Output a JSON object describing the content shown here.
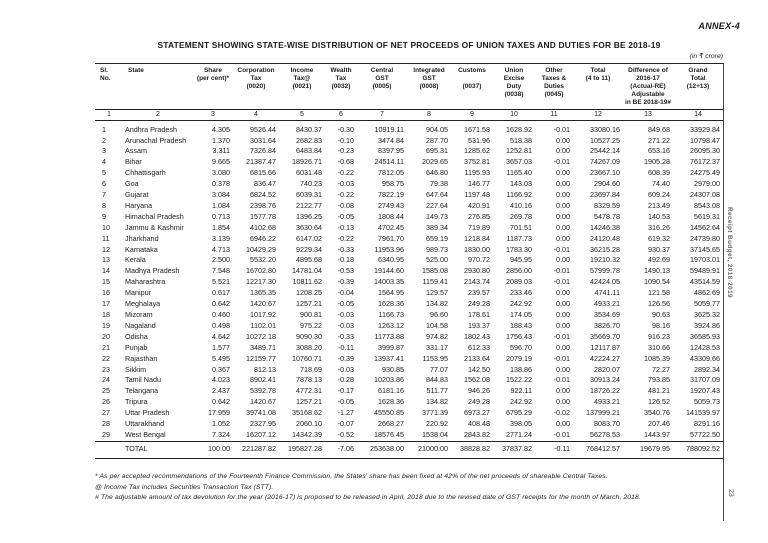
{
  "page": {
    "annex": "ANNEX-4",
    "title": "STATEMENT SHOWING STATE-WISE DISTRIBUTION OF NET PROCEEDS OF UNION TAXES AND DUTIES FOR BE 2018-19",
    "unit_note": "(in ₹ crore)",
    "side_label": "Receipt Budget, 2018-2019",
    "page_number": "23"
  },
  "table": {
    "column_headers": [
      "Sl.\nNo.",
      "State",
      "Share\n(per cent)*",
      "Corporation\nTax\n(0020)",
      "Income\nTax@\n(0021)",
      "Wealth\nTax\n(0032)",
      "Central\nGST\n(0005)",
      "Integrated\nGST\n(0008)",
      "Customs\n\n(0037)",
      "Union\nExcise\nDuty\n(0038)",
      "Other\nTaxes &\nDuties\n(0045)",
      "Total\n(4 to 11)",
      "Difference of\n2016-17\n(Actual-RE)\nAdjustable\nin BE 2018-19#",
      "Grand\nTotal\n(12+13)"
    ],
    "column_numbers": [
      "1",
      "2",
      "3",
      "4",
      "5",
      "6",
      "7",
      "8",
      "9",
      "10",
      "11",
      "12",
      "13",
      "14"
    ],
    "rows": [
      [
        "1",
        "Andhra Pradesh",
        "4.305",
        "9526.44",
        "8430.37",
        "-0.30",
        "10919.11",
        "904.05",
        "1671.58",
        "1628.92",
        "-0.01",
        "33080.16",
        "849.68",
        "33929.84"
      ],
      [
        "2",
        "Arunachal Pradesh",
        "1.370",
        "3031.64",
        "2682.83",
        "-0.10",
        "3474.84",
        "287.70",
        "531.96",
        "518.38",
        "0.00",
        "10527.25",
        "271.22",
        "10798.47"
      ],
      [
        "3",
        "Assam",
        "3.311",
        "7326.84",
        "6483.84",
        "-0.23",
        "8397.95",
        "695.31",
        "1285.62",
        "1252.81",
        "0.00",
        "25442.14",
        "653.16",
        "26095.30"
      ],
      [
        "4",
        "Bihar",
        "9.665",
        "21387.47",
        "18926.71",
        "-0.68",
        "24514.11",
        "2029.65",
        "3752.81",
        "3657.03",
        "-0.01",
        "74267.09",
        "1905.28",
        "76172.37"
      ],
      [
        "5",
        "Chhattisgarh",
        "3.080",
        "6815.66",
        "6031.48",
        "-0.22",
        "7812.05",
        "646.80",
        "1195.93",
        "1165.40",
        "0.00",
        "23667.10",
        "608.39",
        "24275.49"
      ],
      [
        "6",
        "Goa",
        "0.378",
        "836.47",
        "740.23",
        "-0.03",
        "958.75",
        "79.38",
        "146.77",
        "143.03",
        "0.00",
        "2904.60",
        "74.40",
        "2979.00"
      ],
      [
        "7",
        "Gujarat",
        "3.084",
        "6824.52",
        "6039.31",
        "-0.22",
        "7822.19",
        "647.64",
        "1197.48",
        "1166.92",
        "0.00",
        "23697.84",
        "609.24",
        "24307.08"
      ],
      [
        "8",
        "Haryana",
        "1.084",
        "2398.76",
        "2122.77",
        "-0.08",
        "2749.43",
        "227.64",
        "420.91",
        "410.16",
        "0.00",
        "8329.59",
        "213.49",
        "8543.08"
      ],
      [
        "9",
        "Himachal Pradesh",
        "0.713",
        "1577.78",
        "1396.25",
        "-0.05",
        "1808.44",
        "149.73",
        "276.85",
        "269.78",
        "0.00",
        "5478.78",
        "140.53",
        "5619.31"
      ],
      [
        "10",
        "Jammu & Kashmir",
        "1.854",
        "4102.68",
        "3630.64",
        "-0.13",
        "4702.45",
        "389.34",
        "719.89",
        "701.51",
        "0.00",
        "14246.38",
        "316.26",
        "14562.64"
      ],
      [
        "11",
        "Jharkhand",
        "3.139",
        "6946.22",
        "6147.02",
        "-0.22",
        "7961.70",
        "659.19",
        "1218.84",
        "1187.73",
        "0.00",
        "24120.48",
        "619.32",
        "24739.80"
      ],
      [
        "12",
        "Karnataka",
        "4.713",
        "10429.29",
        "9229.34",
        "-0.33",
        "11953.96",
        "989.73",
        "1830.00",
        "1783.30",
        "-0.01",
        "36215.28",
        "930.37",
        "37145.65"
      ],
      [
        "13",
        "Kerala",
        "2.500",
        "5532.20",
        "4895.68",
        "-0.18",
        "6340.95",
        "525.00",
        "970.72",
        "945.95",
        "0.00",
        "19210.32",
        "492.69",
        "19703.01"
      ],
      [
        "14",
        "Madhya Pradesh",
        "7.548",
        "16702.80",
        "14781.04",
        "-0.53",
        "19144.60",
        "1585.08",
        "2930.80",
        "2856.00",
        "-0.01",
        "57999.78",
        "1490.13",
        "59489.91"
      ],
      [
        "15",
        "Maharashtra",
        "5.521",
        "12217.30",
        "10811.62",
        "-0.39",
        "14003.35",
        "1159.41",
        "2143.74",
        "2089.03",
        "-0.01",
        "42424.05",
        "1090.54",
        "43514.59"
      ],
      [
        "16",
        "Manipur",
        "0.617",
        "1365.35",
        "1208.25",
        "-0.04",
        "1564.95",
        "129.57",
        "239.57",
        "233.46",
        "0.00",
        "4741.11",
        "121.58",
        "4862.69"
      ],
      [
        "17",
        "Meghalaya",
        "0.642",
        "1420.67",
        "1257.21",
        "-0.05",
        "1628.36",
        "134.82",
        "249.28",
        "242.92",
        "0.00",
        "4933.21",
        "126.56",
        "5059.77"
      ],
      [
        "18",
        "Mizoram",
        "0.460",
        "1017.92",
        "900.81",
        "-0.03",
        "1166.73",
        "96.60",
        "178.61",
        "174.05",
        "0.00",
        "3534.69",
        "90.63",
        "3625.32"
      ],
      [
        "19",
        "Nagaland",
        "0.498",
        "1102.01",
        "975.22",
        "-0.03",
        "1263.12",
        "104.58",
        "193.37",
        "188.43",
        "0.00",
        "3826.70",
        "98.16",
        "3924.86"
      ],
      [
        "20",
        "Odisha",
        "4.642",
        "10272.18",
        "9090.30",
        "-0.33",
        "11773.88",
        "974.82",
        "1802.43",
        "1756.43",
        "-0.01",
        "35669.70",
        "916.23",
        "36585.93"
      ],
      [
        "21",
        "Punjab",
        "1.577",
        "3489.71",
        "3088.20",
        "-0.11",
        "3999.87",
        "331.17",
        "612.33",
        "596.70",
        "0.00",
        "12117.87",
        "310.66",
        "12428.53"
      ],
      [
        "22",
        "Rajasthan",
        "5.495",
        "12159.77",
        "10760.71",
        "-0.39",
        "13937.41",
        "1153.95",
        "2133.64",
        "2079.19",
        "-0.01",
        "42224.27",
        "1085.39",
        "43309.66"
      ],
      [
        "23",
        "Sikkim",
        "0.367",
        "812.13",
        "718.69",
        "-0.03",
        "930.85",
        "77.07",
        "142.50",
        "138.86",
        "0.00",
        "2820.07",
        "72.27",
        "2892.34"
      ],
      [
        "24",
        "Tamil Nadu",
        "4.023",
        "8902.41",
        "7878.13",
        "-0.28",
        "10203.86",
        "844.83",
        "1562.08",
        "1522.22",
        "-0.01",
        "30913.24",
        "793.85",
        "31707.09"
      ],
      [
        "25",
        "Telangana",
        "2.437",
        "5392.78",
        "4772.31",
        "-0.17",
        "6181.16",
        "511.77",
        "946.26",
        "922.11",
        "0.00",
        "18726.22",
        "481.21",
        "19207.43"
      ],
      [
        "26",
        "Tripura",
        "0.642",
        "1420.67",
        "1257.21",
        "-0.05",
        "1628.36",
        "134.82",
        "249.28",
        "242.92",
        "0.00",
        "4933.21",
        "126.52",
        "5059.73"
      ],
      [
        "27",
        "Uttar Pradesh",
        "17.959",
        "39741.08",
        "35168.62",
        "-1.27",
        "45550.85",
        "3771.39",
        "6973.27",
        "6795.29",
        "-0.02",
        "137999.21",
        "3540.76",
        "141539.97"
      ],
      [
        "28",
        "Uttarakhand",
        "1.052",
        "2327.95",
        "2060.10",
        "-0.07",
        "2668.27",
        "220.92",
        "408.48",
        "398.05",
        "0.00",
        "8083.70",
        "207.46",
        "8291.16"
      ],
      [
        "29",
        "West Bengal",
        "7.324",
        "16207.12",
        "14342.39",
        "-0.52",
        "18576.45",
        "1538.04",
        "2843.82",
        "2771.24",
        "-0.01",
        "56278.53",
        "1443.97",
        "57722.50"
      ]
    ],
    "total_row": [
      "",
      "TOTAL",
      "100.00",
      "221287.82",
      "195827.28",
      "-7.06",
      "253638.00",
      "21000.00",
      "38828.82",
      "37837.82",
      "-0.11",
      "768412.57",
      "19679.95",
      "788092.52"
    ]
  },
  "footnotes": [
    "*  As per accepted recommendations of the Fourteenth Finance Commission, the States' share has been fixed at 42% of the net proceeds of shareable Central Taxes.",
    "@ Income Tax includes Securities Transaction Tax (STT).",
    "#  The adjustable amount of tax devolution for the year (2016-17) is proposed to be released in April, 2018 due to the revised date of GST receipts for the month of March, 2018."
  ]
}
